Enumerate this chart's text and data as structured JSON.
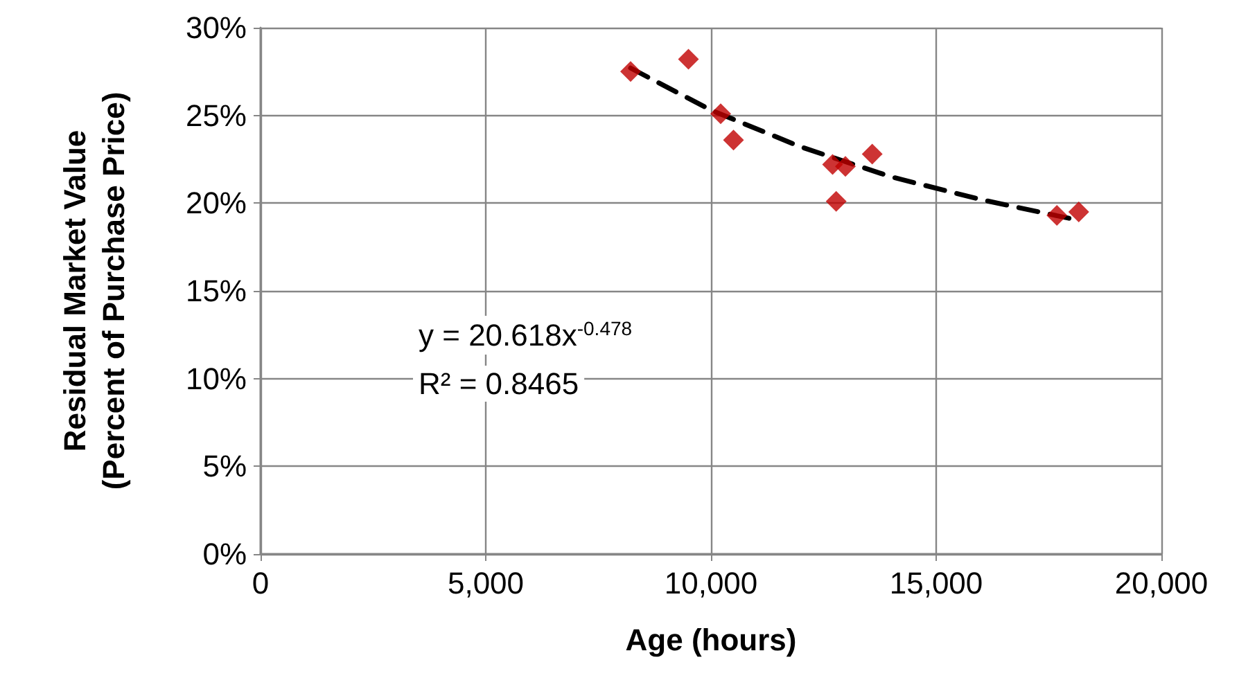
{
  "chart_data": {
    "type": "scatter",
    "xlabel": "Age (hours)",
    "ylabel": "Residual Market Value\n(Percent of Purchase Price)",
    "xlim": [
      0,
      20000
    ],
    "xticks": [
      0,
      {
        "value": 5000,
        "label": "5,000"
      },
      {
        "value": 10000,
        "label": "10,000"
      },
      {
        "value": 15000,
        "label": "15,000"
      },
      {
        "value": 20000,
        "label": "20,000"
      }
    ],
    "ylim": [
      0,
      30
    ],
    "yticks": [
      {
        "value": 0,
        "label": "0%"
      },
      {
        "value": 5,
        "label": "5%"
      },
      {
        "value": 10,
        "label": "10%"
      },
      {
        "value": 15,
        "label": "15%"
      },
      {
        "value": 20,
        "label": "20%"
      },
      {
        "value": 25,
        "label": "25%"
      },
      {
        "value": 30,
        "label": "30%"
      }
    ],
    "grid": true,
    "marker": "diamond",
    "series": [
      {
        "color": "#c00000",
        "x": [
          8215,
          9500,
          10215,
          10500,
          12700,
          12985,
          13580,
          12780,
          17680,
          18165
        ],
        "values": [
          27.5,
          28.2,
          25.1,
          23.6,
          22.2,
          22.1,
          22.8,
          20.1,
          19.3,
          19.5
        ]
      },
      {
        "type": "line",
        "color": "#000000",
        "line_style": "dashed",
        "marker": "none",
        "x": [
          8215,
          10000,
          12000,
          14000,
          16000,
          18200
        ],
        "values": [
          27.7,
          25.3,
          23.2,
          21.5,
          20.2,
          19.0
        ]
      }
    ],
    "annotations": [
      "y = 20.618x$^{-0.478}$",
      "R² = 0.8465"
    ]
  }
}
